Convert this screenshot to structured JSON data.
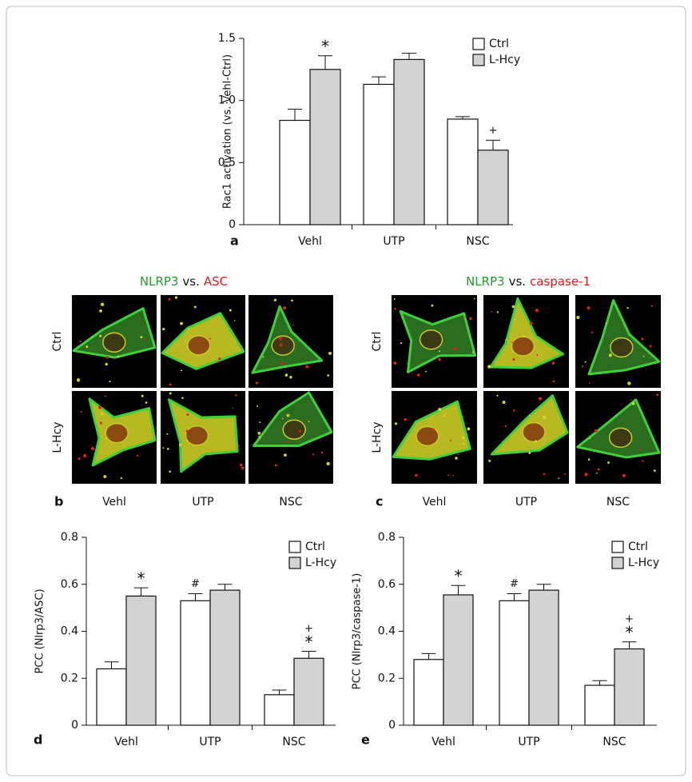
{
  "chart_data": [
    {
      "type": "bar",
      "panel": "a",
      "ylabel": "Rac1 activation (vs. Vehl-Ctrl)",
      "categories": [
        "Vehl",
        "UTP",
        "NSC"
      ],
      "series": [
        {
          "name": "Ctrl",
          "color": "#ffffff",
          "values": [
            0.84,
            1.13,
            0.85
          ],
          "errors": [
            0.09,
            0.06,
            0.02
          ],
          "markers": [
            null,
            null,
            null
          ]
        },
        {
          "name": "L-Hcy",
          "color": "#d3d3d3",
          "values": [
            1.25,
            1.33,
            0.6
          ],
          "errors": [
            0.11,
            0.05,
            0.08
          ],
          "markers": [
            [
              "*"
            ],
            null,
            [
              "+"
            ]
          ]
        }
      ],
      "ylim": [
        0,
        1.5
      ],
      "yticks": [
        0,
        0.5,
        {
          "value": 1,
          "label": "1.0"
        },
        1.5
      ],
      "legend": "upper right"
    },
    {
      "type": "bar",
      "panel": "d",
      "ylabel": "PCC (Nlrp3/ASC)",
      "categories": [
        "Vehl",
        "UTP",
        "NSC"
      ],
      "series": [
        {
          "name": "Ctrl",
          "color": "#ffffff",
          "values": [
            0.24,
            0.53,
            0.13
          ],
          "errors": [
            0.03,
            0.03,
            0.02
          ],
          "markers": [
            null,
            [
              "#"
            ],
            null
          ]
        },
        {
          "name": "L-Hcy",
          "color": "#d3d3d3",
          "values": [
            0.55,
            0.575,
            0.285
          ],
          "errors": [
            0.035,
            0.025,
            0.03
          ],
          "markers": [
            [
              "*"
            ],
            null,
            [
              "+",
              "*"
            ]
          ]
        }
      ],
      "ylim": [
        0,
        0.8
      ],
      "yticks": [
        0,
        0.2,
        0.4,
        0.6,
        0.8
      ],
      "legend": "upper right"
    },
    {
      "type": "bar",
      "panel": "e",
      "ylabel": "PCC (Nlrp3/caspase-1)",
      "categories": [
        "Vehl",
        "UTP",
        "NSC"
      ],
      "series": [
        {
          "name": "Ctrl",
          "color": "#ffffff",
          "values": [
            0.28,
            0.53,
            0.17
          ],
          "errors": [
            0.025,
            0.03,
            0.02
          ],
          "markers": [
            null,
            [
              "#"
            ],
            null
          ]
        },
        {
          "name": "L-Hcy",
          "color": "#d3d3d3",
          "values": [
            0.555,
            0.575,
            0.325
          ],
          "errors": [
            0.04,
            0.025,
            0.03
          ],
          "markers": [
            [
              "*"
            ],
            null,
            [
              "+",
              "*"
            ]
          ]
        }
      ],
      "ylim": [
        0,
        0.8
      ],
      "yticks": [
        0,
        0.2,
        0.4,
        0.6,
        0.8
      ],
      "legend": "upper right"
    }
  ],
  "panels": [
    {
      "letter": "b",
      "title": [
        {
          "text": "NLRP3",
          "color": "#1f9e2a"
        },
        {
          "text": "vs.",
          "color": "#111111"
        },
        {
          "text": "ASC",
          "color": "#e01b1b"
        }
      ],
      "rows": [
        "Ctrl",
        "L-Hcy"
      ],
      "columns": [
        "Vehl",
        "UTP",
        "NSC"
      ]
    },
    {
      "letter": "c",
      "title": [
        {
          "text": "NLRP3",
          "color": "#1f9e2a"
        },
        {
          "text": "vs.",
          "color": "#111111"
        },
        {
          "text": "caspase-1",
          "color": "#e01b1b"
        }
      ],
      "rows": [
        "Ctrl",
        "L-Hcy"
      ],
      "columns": [
        "Vehl",
        "UTP",
        "NSC"
      ]
    }
  ]
}
